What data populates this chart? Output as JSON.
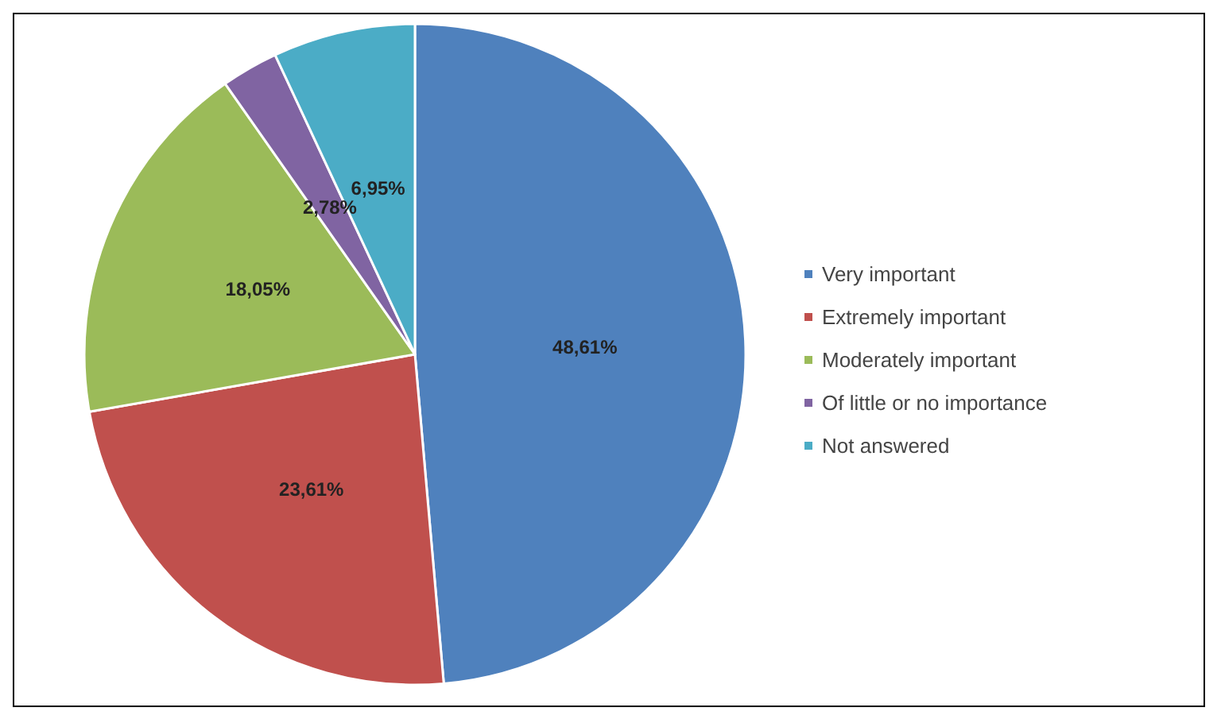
{
  "chart_data": {
    "type": "pie",
    "categories": [
      "Very important",
      "Extremely important",
      "Moderately important",
      "Of little or no importance",
      "Not answered"
    ],
    "values": [
      48.61,
      23.61,
      18.05,
      2.78,
      6.95
    ],
    "colors": [
      "#4f81bd",
      "#c0504d",
      "#9bbb59",
      "#8064a2",
      "#4bacc6"
    ],
    "value_labels": [
      "48,61%",
      "23,61%",
      "18,05%",
      "2,78%",
      "6,95%"
    ],
    "legend": "right"
  }
}
